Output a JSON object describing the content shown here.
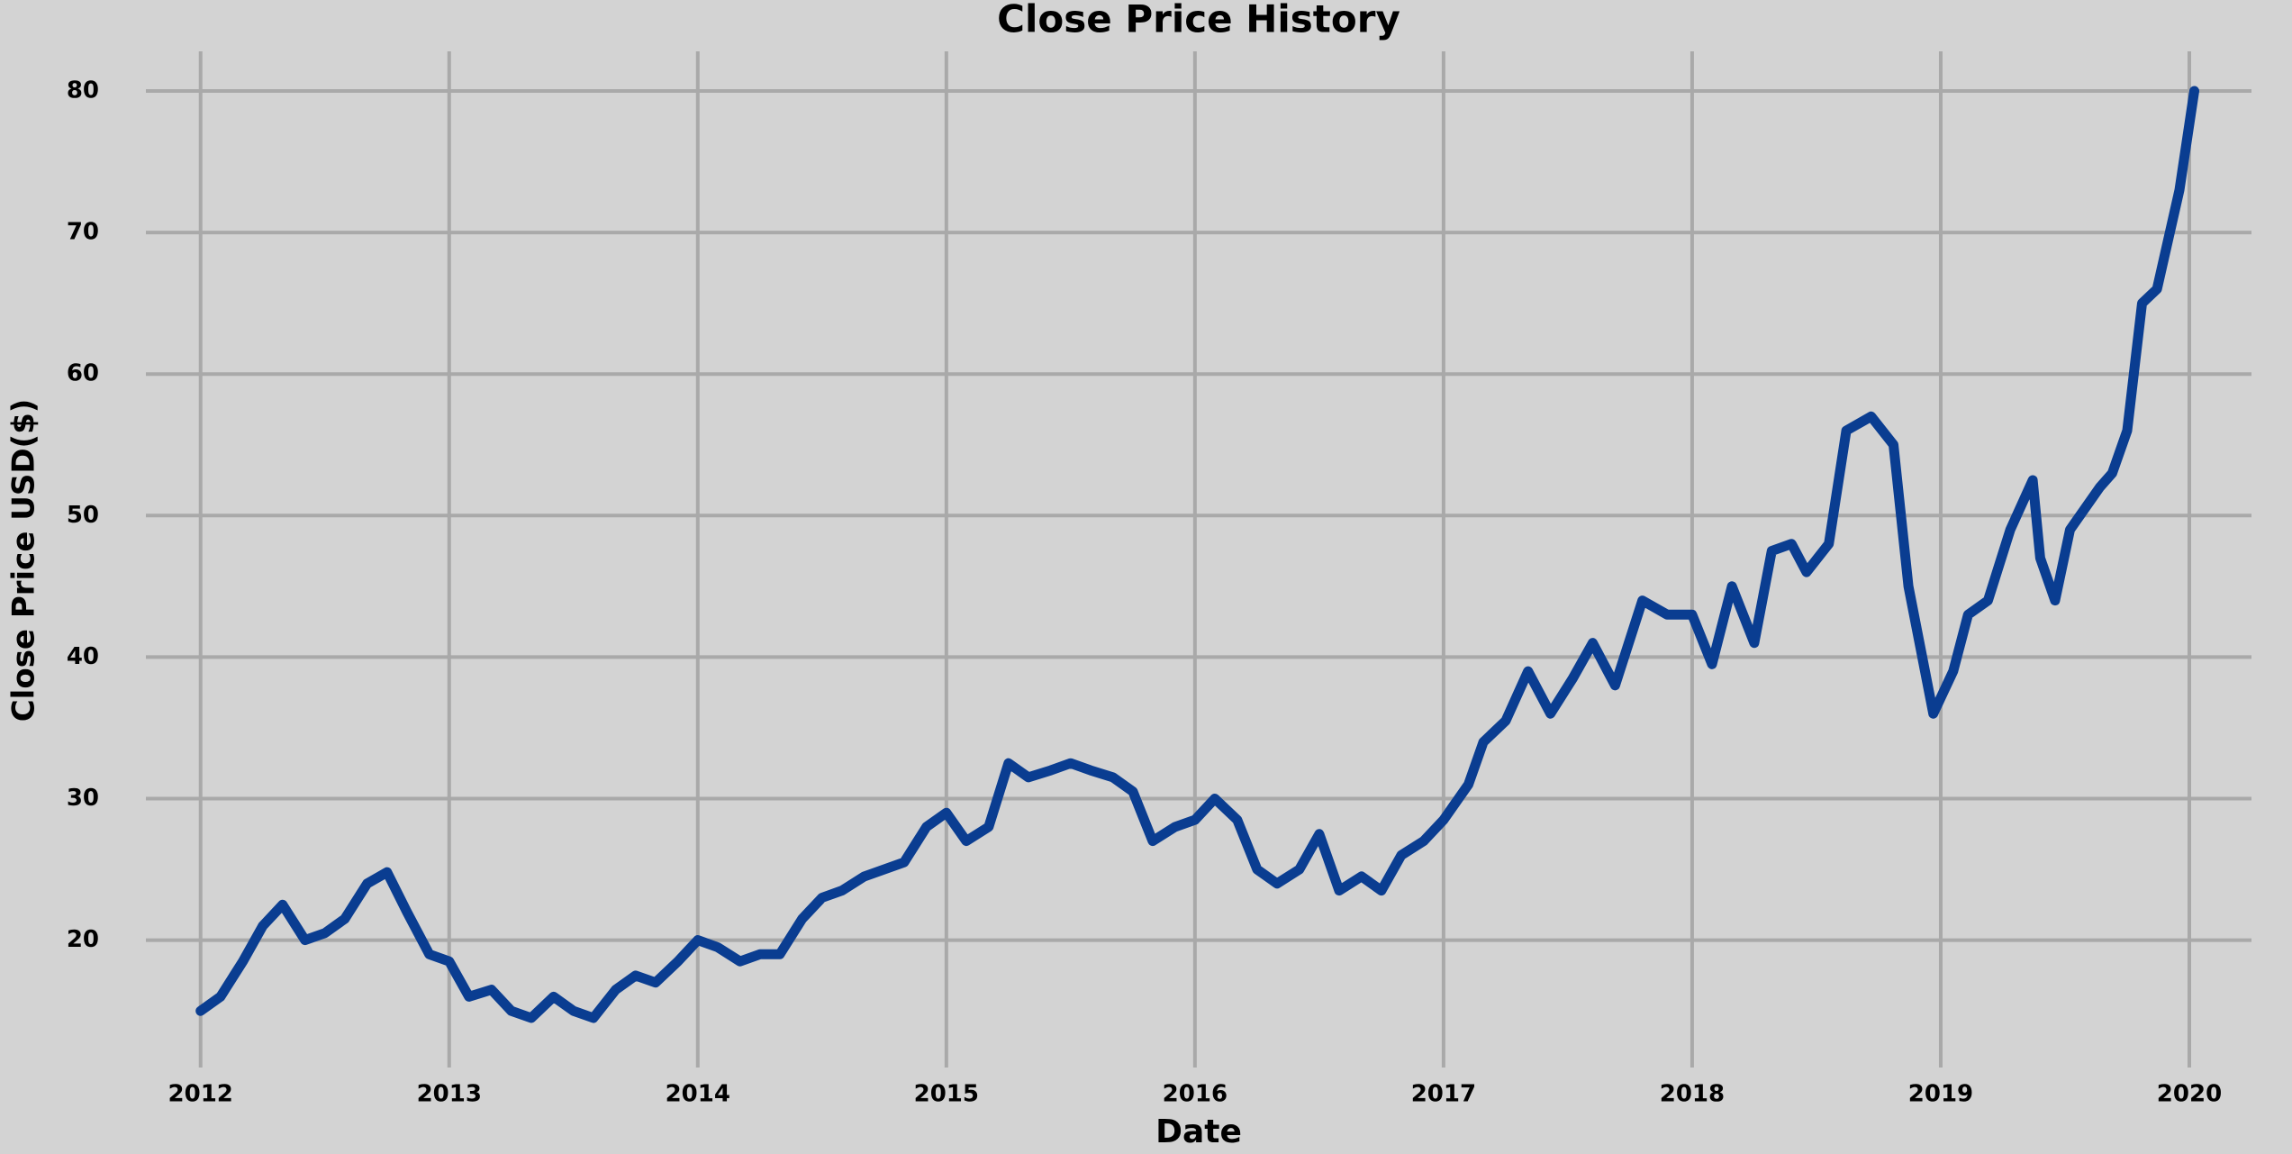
{
  "chart_data": {
    "type": "line",
    "title": "Close Price History",
    "xlabel": "Date",
    "ylabel": "Close Price USD($)",
    "x": [
      2012.0,
      2012.08,
      2012.17,
      2012.25,
      2012.33,
      2012.42,
      2012.5,
      2012.58,
      2012.67,
      2012.75,
      2012.83,
      2012.92,
      2013.0,
      2013.08,
      2013.17,
      2013.25,
      2013.33,
      2013.42,
      2013.5,
      2013.58,
      2013.67,
      2013.75,
      2013.83,
      2013.92,
      2014.0,
      2014.08,
      2014.17,
      2014.25,
      2014.33,
      2014.42,
      2014.5,
      2014.58,
      2014.67,
      2014.75,
      2014.83,
      2014.92,
      2015.0,
      2015.08,
      2015.17,
      2015.25,
      2015.33,
      2015.42,
      2015.5,
      2015.58,
      2015.67,
      2015.75,
      2015.83,
      2015.92,
      2016.0,
      2016.08,
      2016.17,
      2016.25,
      2016.33,
      2016.42,
      2016.5,
      2016.58,
      2016.67,
      2016.75,
      2016.83,
      2016.92,
      2017.0,
      2017.1,
      2017.16,
      2017.25,
      2017.34,
      2017.43,
      2017.52,
      2017.6,
      2017.69,
      2017.8,
      2017.9,
      2018.0,
      2018.08,
      2018.16,
      2018.25,
      2018.32,
      2018.4,
      2018.46,
      2018.55,
      2018.62,
      2018.72,
      2018.81,
      2018.87,
      2018.97,
      2019.05,
      2019.11,
      2019.19,
      2019.28,
      2019.37,
      2019.4,
      2019.46,
      2019.52,
      2019.64,
      2019.69,
      2019.75,
      2019.81,
      2019.87,
      2019.96,
      2020.02
    ],
    "values": [
      15,
      16,
      18.5,
      21,
      22.5,
      20,
      20.5,
      21.5,
      24,
      24.8,
      22,
      19,
      18.5,
      16,
      16.5,
      15,
      14.5,
      16,
      15,
      14.5,
      16.5,
      17.5,
      17,
      18.5,
      20,
      19.5,
      18.5,
      19,
      19,
      21.5,
      23,
      23.5,
      24.5,
      25,
      25.5,
      28,
      29,
      27,
      28,
      32.5,
      31.5,
      32,
      32.5,
      32,
      31.5,
      30.5,
      27,
      28,
      28.5,
      30,
      28.5,
      25,
      24,
      25,
      27.5,
      23.5,
      24.5,
      23.5,
      26,
      27,
      28.5,
      31,
      34,
      35.5,
      39,
      36,
      38.5,
      41,
      38,
      44,
      43,
      43,
      39.5,
      45,
      41,
      47.5,
      48,
      46,
      48,
      56,
      57,
      55,
      45,
      36,
      39,
      43,
      44,
      49,
      52.5,
      47,
      44,
      49,
      52,
      53,
      56,
      65,
      66,
      73,
      80
    ],
    "color": "#0a3d91",
    "xlim": [
      2011.78,
      2020.25
    ],
    "xticks": [
      2012,
      2013,
      2014,
      2015,
      2016,
      2017,
      2018,
      2019,
      2020
    ],
    "ylim": [
      11,
      82.8
    ],
    "yticks": [
      20,
      30,
      40,
      50,
      60,
      70,
      80
    ],
    "grid": true
  }
}
